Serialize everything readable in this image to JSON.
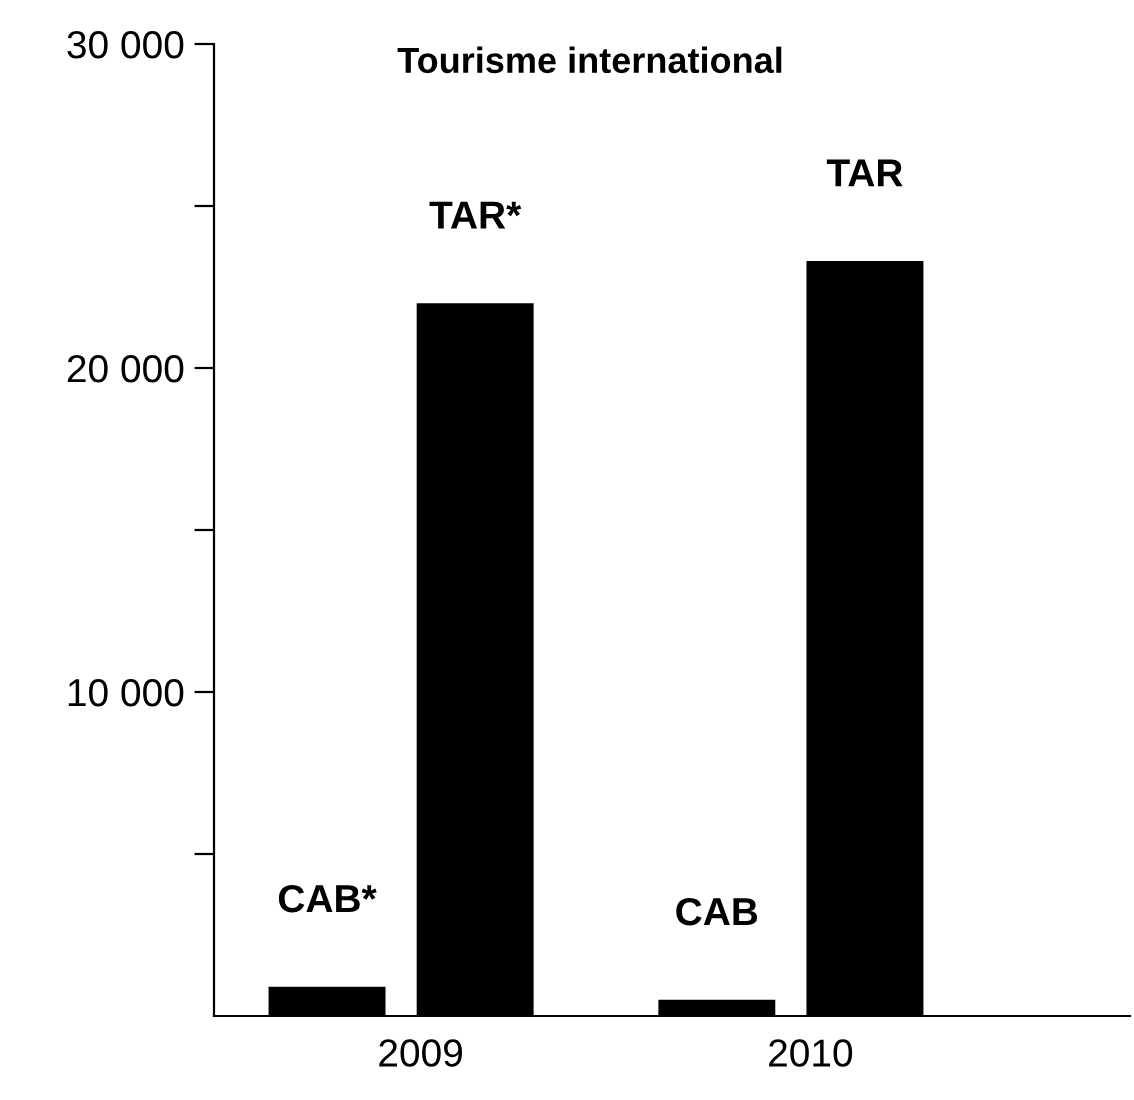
{
  "chart_data": {
    "type": "bar",
    "title": "Tourisme international",
    "categories": [
      "2009",
      "2010"
    ],
    "series": [
      {
        "color": "#000000",
        "values": [
          900,
          500
        ]
      },
      {
        "color": "#000000",
        "values": [
          22000,
          23300
        ]
      }
    ],
    "ylim": [
      0,
      30000
    ],
    "yticks": [
      {
        "value": 5000,
        "label": null
      },
      {
        "value": 10000,
        "label": "10 000"
      },
      {
        "value": 15000,
        "label": null
      },
      {
        "value": 20000,
        "label": "20 000"
      },
      {
        "value": 25000,
        "label": null
      },
      {
        "value": 30000,
        "label": "30 000"
      }
    ],
    "grid": false,
    "legend": false,
    "annotations": [
      "CAB*",
      "TAR*",
      "CAB",
      "TAR"
    ]
  }
}
